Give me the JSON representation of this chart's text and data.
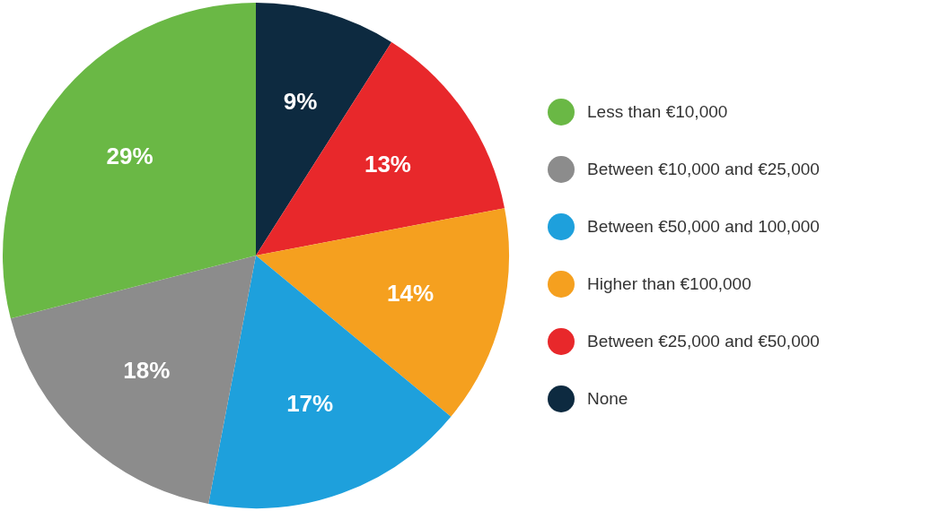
{
  "chart_data": {
    "type": "pie",
    "categories": [
      "Less than €10,000",
      "Between €10,000 and €25,000",
      "Between €50,000 and 100,000",
      "Higher than €100,000",
      "Between €25,000 and €50,000",
      "None"
    ],
    "values": [
      29,
      18,
      17,
      14,
      13,
      9
    ],
    "value_labels": [
      "29%",
      "18%",
      "17%",
      "14%",
      "13%",
      "9%"
    ],
    "colors": [
      "#6ab845",
      "#8c8c8c",
      "#1ea0dc",
      "#f5a01f",
      "#e8282b",
      "#0d2a40"
    ],
    "legend": "right"
  }
}
